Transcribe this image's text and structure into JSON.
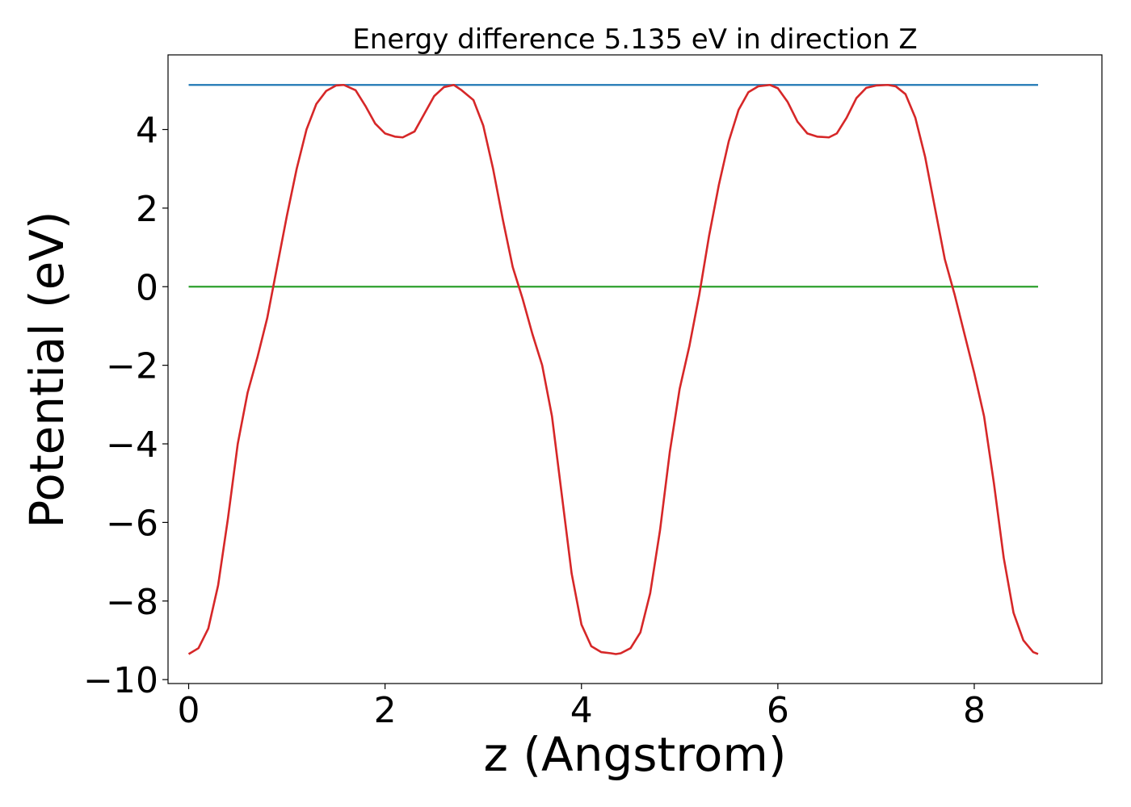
{
  "chart_data": {
    "type": "line",
    "title": "Energy difference 5.135 eV in direction Z",
    "xlabel": "z (Angstrom)",
    "ylabel": "Potential (eV)",
    "xlim": [
      -0.21,
      9.3
    ],
    "ylim": [
      -10.1,
      5.9
    ],
    "xticks": [
      0,
      2,
      4,
      6,
      8
    ],
    "xtick_labels": [
      "0",
      "2",
      "4",
      "6",
      "8"
    ],
    "yticks": [
      -10,
      -8,
      -6,
      -4,
      -2,
      0,
      2,
      4
    ],
    "ytick_labels": [
      "−10",
      "−8",
      "−6",
      "−4",
      "−2",
      "0",
      "2",
      "4"
    ],
    "grid": false,
    "legend": false,
    "series": [
      {
        "color": "#1f77b4",
        "x": [
          0,
          8.65
        ],
        "y": [
          5.135,
          5.135
        ]
      },
      {
        "color": "#2ca02c",
        "x": [
          0,
          8.65
        ],
        "y": [
          0,
          0
        ]
      },
      {
        "color": "#d62728",
        "x": [
          0.0,
          0.1,
          0.2,
          0.3,
          0.4,
          0.5,
          0.6,
          0.7,
          0.8,
          0.9,
          1.0,
          1.1,
          1.2,
          1.3,
          1.4,
          1.5,
          1.58,
          1.7,
          1.8,
          1.9,
          2.0,
          2.1,
          2.18,
          2.3,
          2.4,
          2.5,
          2.6,
          2.7,
          2.78,
          2.9,
          3.0,
          3.1,
          3.2,
          3.3,
          3.4,
          3.5,
          3.6,
          3.7,
          3.8,
          3.9,
          4.0,
          4.1,
          4.2,
          4.3,
          4.35,
          4.4,
          4.5,
          4.6,
          4.7,
          4.8,
          4.9,
          5.0,
          5.1,
          5.2,
          5.3,
          5.4,
          5.5,
          5.6,
          5.7,
          5.8,
          5.92,
          6.0,
          6.1,
          6.2,
          6.3,
          6.4,
          6.52,
          6.6,
          6.7,
          6.8,
          6.9,
          7.0,
          7.12,
          7.2,
          7.3,
          7.4,
          7.5,
          7.6,
          7.7,
          7.8,
          7.9,
          8.0,
          8.1,
          8.2,
          8.3,
          8.4,
          8.5,
          8.6,
          8.65
        ],
        "y": [
          -9.35,
          -9.2,
          -8.7,
          -7.6,
          -5.9,
          -4.0,
          -2.7,
          -1.8,
          -0.8,
          0.5,
          1.8,
          3.0,
          4.0,
          4.65,
          4.98,
          5.12,
          5.135,
          5.0,
          4.6,
          4.15,
          3.9,
          3.82,
          3.8,
          3.95,
          4.4,
          4.85,
          5.08,
          5.135,
          5.0,
          4.75,
          4.1,
          3.0,
          1.7,
          0.5,
          -0.3,
          -1.2,
          -2.0,
          -3.3,
          -5.3,
          -7.3,
          -8.6,
          -9.15,
          -9.3,
          -9.33,
          -9.35,
          -9.33,
          -9.2,
          -8.8,
          -7.8,
          -6.2,
          -4.2,
          -2.6,
          -1.5,
          -0.2,
          1.3,
          2.6,
          3.7,
          4.5,
          4.95,
          5.1,
          5.135,
          5.05,
          4.7,
          4.2,
          3.9,
          3.82,
          3.8,
          3.9,
          4.3,
          4.8,
          5.06,
          5.12,
          5.135,
          5.1,
          4.9,
          4.3,
          3.3,
          2.0,
          0.7,
          -0.2,
          -1.2,
          -2.2,
          -3.3,
          -5.0,
          -6.9,
          -8.3,
          -9.0,
          -9.3,
          -9.35
        ]
      }
    ]
  }
}
